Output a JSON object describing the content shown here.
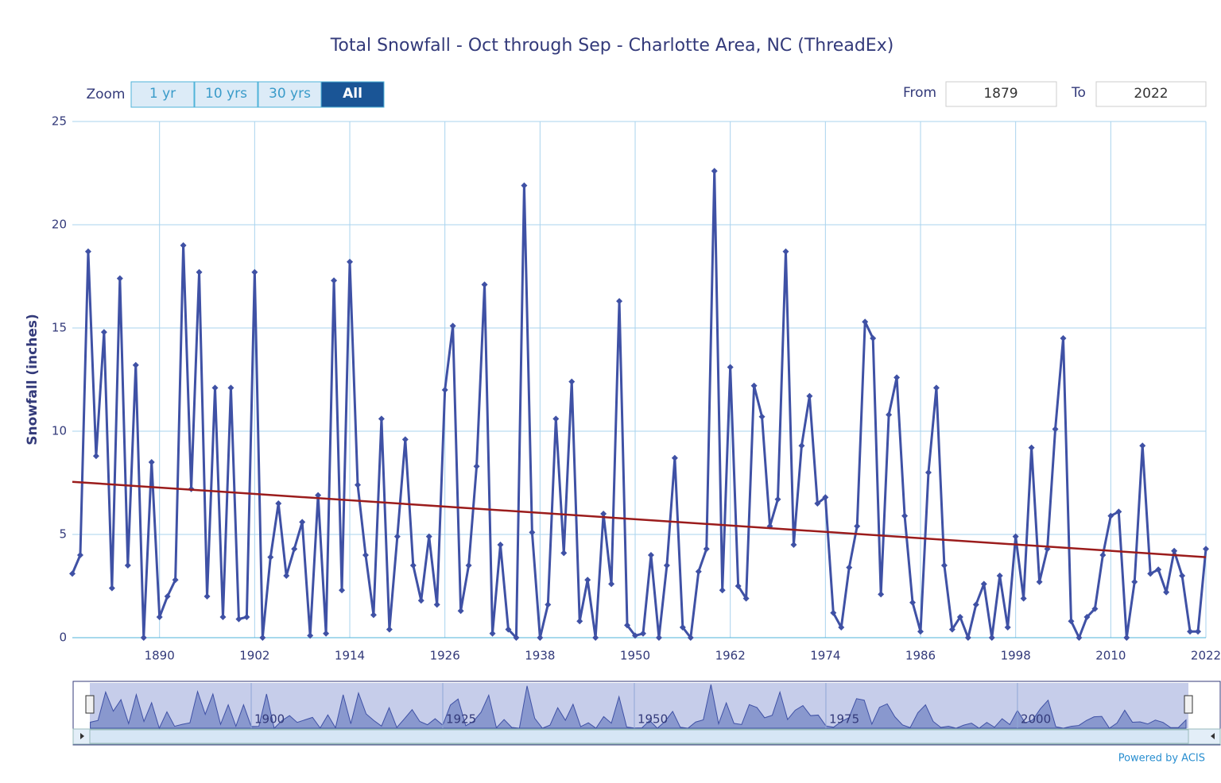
{
  "chart_data": {
    "type": "line",
    "title": "Total Snowfall - Oct through Sep - Charlotte Area, NC (ThreadEx)",
    "y_label": "Snowfall (inches)",
    "credit": "Powered by ACIS",
    "range_selector": {
      "zoom_label": "Zoom",
      "buttons": [
        "1 yr",
        "10 yrs",
        "30 yrs",
        "All"
      ],
      "from_label": "From",
      "from": "1879",
      "to_label": "To",
      "to": "2022"
    },
    "x": [
      1879,
      1880,
      1881,
      1882,
      1883,
      1884,
      1885,
      1886,
      1887,
      1888,
      1889,
      1890,
      1891,
      1892,
      1893,
      1894,
      1895,
      1896,
      1897,
      1898,
      1899,
      1900,
      1901,
      1902,
      1903,
      1904,
      1905,
      1906,
      1907,
      1908,
      1909,
      1910,
      1911,
      1912,
      1913,
      1914,
      1915,
      1916,
      1917,
      1918,
      1919,
      1920,
      1921,
      1922,
      1923,
      1924,
      1925,
      1926,
      1927,
      1928,
      1929,
      1930,
      1931,
      1932,
      1933,
      1934,
      1935,
      1936,
      1937,
      1938,
      1939,
      1940,
      1941,
      1942,
      1943,
      1944,
      1945,
      1946,
      1947,
      1948,
      1949,
      1950,
      1951,
      1952,
      1953,
      1954,
      1955,
      1956,
      1957,
      1958,
      1959,
      1960,
      1961,
      1962,
      1963,
      1964,
      1965,
      1966,
      1967,
      1968,
      1969,
      1970,
      1971,
      1972,
      1973,
      1974,
      1975,
      1976,
      1977,
      1978,
      1979,
      1980,
      1981,
      1982,
      1983,
      1984,
      1985,
      1986,
      1987,
      1988,
      1989,
      1990,
      1991,
      1992,
      1993,
      1994,
      1995,
      1996,
      1997,
      1998,
      1999,
      2000,
      2001,
      2002,
      2003,
      2004,
      2005,
      2006,
      2007,
      2008,
      2009,
      2010,
      2011,
      2012,
      2013,
      2014,
      2015,
      2016,
      2017,
      2018,
      2019,
      2020,
      2021,
      2022
    ],
    "series": [
      {
        "color": "#3f51a5",
        "values": [
          3.1,
          4.0,
          18.7,
          8.8,
          14.8,
          2.4,
          17.4,
          3.5,
          13.2,
          0,
          8.5,
          1.0,
          2.0,
          2.8,
          19.0,
          7.2,
          17.7,
          2.0,
          12.1,
          1.0,
          12.1,
          0.9,
          1.0,
          17.7,
          0,
          3.9,
          6.5,
          3.0,
          4.3,
          5.6,
          0.1,
          6.9,
          0.2,
          17.3,
          2.3,
          18.2,
          7.4,
          4.0,
          1.1,
          10.6,
          0.4,
          4.9,
          9.6,
          3.5,
          1.8,
          4.9,
          1.6,
          12.0,
          15.1,
          1.3,
          3.5,
          8.3,
          17.1,
          0.2,
          4.5,
          0.4,
          0,
          21.9,
          5.1,
          0,
          1.6,
          10.6,
          4.1,
          12.4,
          0.8,
          2.8,
          0,
          6.0,
          2.6,
          16.3,
          0.6,
          0.1,
          0.2,
          4.0,
          0,
          3.5,
          8.7,
          0.5,
          0,
          3.2,
          4.3,
          22.6,
          2.3,
          13.1,
          2.5,
          1.9,
          12.2,
          10.7,
          5.4,
          6.7,
          18.7,
          4.5,
          9.3,
          11.7,
          6.5,
          6.8,
          1.2,
          0.5,
          3.4,
          5.4,
          15.3,
          14.5,
          2.1,
          10.8,
          12.6,
          5.9,
          1.7,
          0.3,
          8.0,
          12.1,
          3.5,
          0.4,
          1.0,
          0,
          1.6,
          2.6,
          0,
          3.0,
          0.5,
          4.9,
          1.9,
          9.2,
          2.7,
          4.3,
          10.1,
          14.5,
          0.8,
          0,
          1.0,
          1.4,
          4.0,
          5.9,
          6.1,
          0,
          2.7,
          9.3,
          3.1,
          3.3,
          2.2,
          4.2,
          3.0,
          0.3,
          0.3,
          4.3
        ]
      }
    ],
    "trend": {
      "color": "#9b1c1c",
      "x": [
        1879,
        2022
      ],
      "values": [
        7.55,
        3.9
      ]
    },
    "xlim": [
      1879,
      2022
    ],
    "xticks": [
      1890,
      1902,
      1914,
      1926,
      1938,
      1950,
      1962,
      1974,
      1986,
      1998,
      2010,
      2022
    ],
    "ylim": [
      0,
      25
    ],
    "yticks": [
      0,
      5,
      10,
      15,
      20,
      25
    ],
    "grid": true,
    "navigator_xticks": [
      1900,
      1925,
      1950,
      1975,
      2000
    ]
  }
}
